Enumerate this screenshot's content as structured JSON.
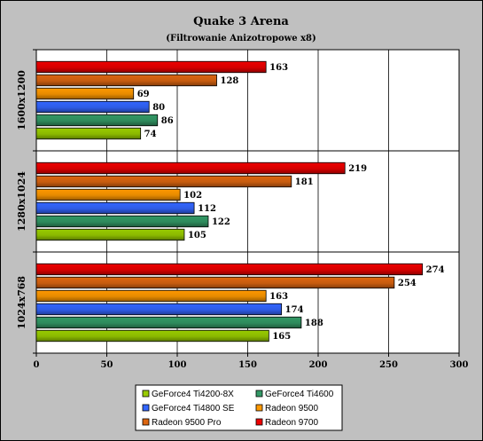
{
  "chart_data": {
    "type": "bar",
    "orientation": "horizontal",
    "title": "Quake 3 Arena",
    "subtitle": "(Filtrowanie Anizotropowe x8)",
    "categories": [
      "1600x1200",
      "1280x1024",
      "1024x768"
    ],
    "series": [
      {
        "name": "GeForce4 Ti4200-8X",
        "color": "#99cc00",
        "values": [
          74,
          105,
          165
        ]
      },
      {
        "name": "GeForce4 Ti4600",
        "color": "#339966",
        "values": [
          86,
          122,
          188
        ]
      },
      {
        "name": "GeForce4 Ti4800 SE",
        "color": "#3366ff",
        "values": [
          80,
          112,
          174
        ]
      },
      {
        "name": "Radeon 9500",
        "color": "#ff9900",
        "values": [
          69,
          102,
          163
        ]
      },
      {
        "name": "Radeon 9500 Pro",
        "color": "#dd6611",
        "values": [
          128,
          181,
          254
        ]
      },
      {
        "name": "Radeon 9700",
        "color": "#ee0000",
        "values": [
          163,
          219,
          274
        ]
      }
    ],
    "xlim": [
      0,
      300
    ],
    "xticks": [
      0,
      50,
      100,
      150,
      200,
      250,
      300
    ],
    "grid": "vertical",
    "legend": "bottom-center"
  }
}
